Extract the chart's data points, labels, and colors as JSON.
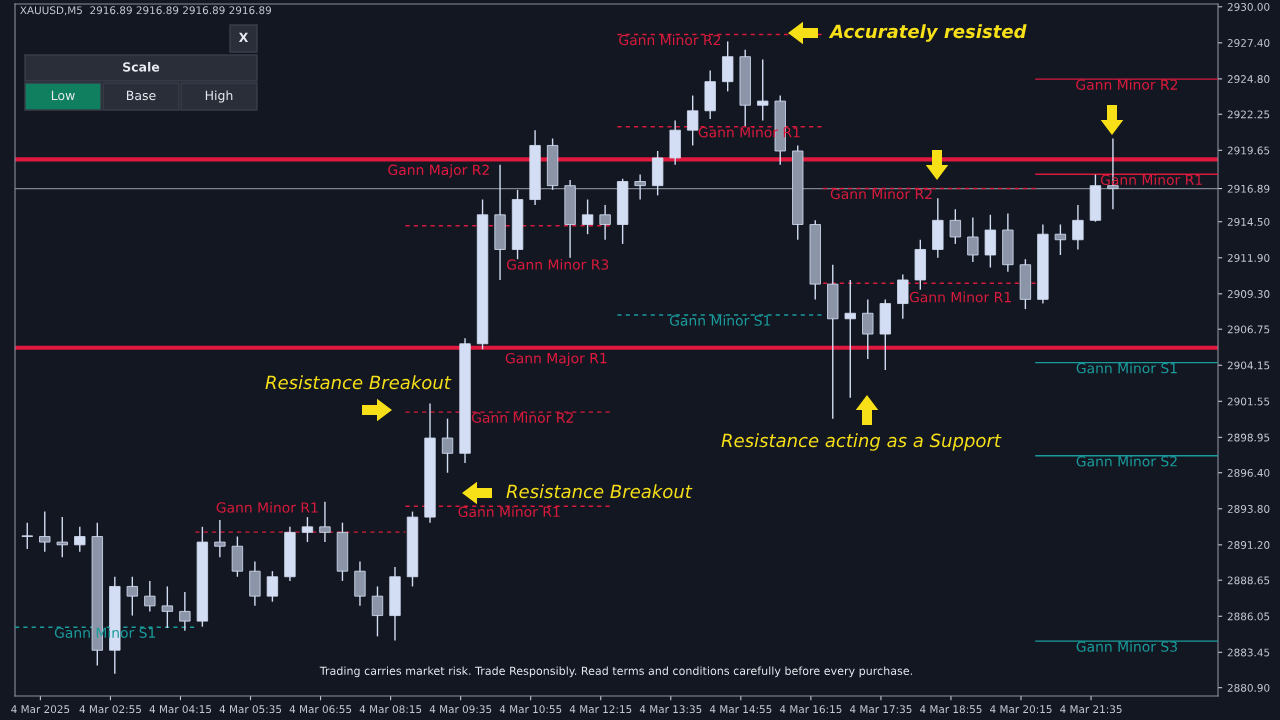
{
  "chart_data": {
    "type": "candlestick",
    "title": "XAUUSD,M5  2916.89 2916.89 2916.89 2916.89",
    "color": "#d3ddf3",
    "x": [
      "2025-03-04T01:20",
      "2025-03-04T01:40",
      "2025-03-04T02:00",
      "2025-03-04T02:20",
      "2025-03-04T02:40",
      "2025-03-04T03:00",
      "2025-03-04T03:20",
      "2025-03-04T03:40",
      "2025-03-04T04:00",
      "2025-03-04T04:20",
      "2025-03-04T04:40",
      "2025-03-04T05:00",
      "2025-03-04T05:20",
      "2025-03-04T05:40",
      "2025-03-04T06:00",
      "2025-03-04T06:20",
      "2025-03-04T06:40",
      "2025-03-04T07:00",
      "2025-03-04T07:20",
      "2025-03-04T07:40",
      "2025-03-04T08:00",
      "2025-03-04T08:20",
      "2025-03-04T08:40",
      "2025-03-04T09:00",
      "2025-03-04T09:20",
      "2025-03-04T09:40",
      "2025-03-04T10:00",
      "2025-03-04T10:20",
      "2025-03-04T10:40",
      "2025-03-04T11:00",
      "2025-03-04T11:20",
      "2025-03-04T11:40",
      "2025-03-04T12:00",
      "2025-03-04T12:20",
      "2025-03-04T12:40",
      "2025-03-04T13:00",
      "2025-03-04T13:20",
      "2025-03-04T13:40",
      "2025-03-04T14:00",
      "2025-03-04T14:20",
      "2025-03-04T14:40",
      "2025-03-04T15:00",
      "2025-03-04T15:20",
      "2025-03-04T15:40",
      "2025-03-04T16:00",
      "2025-03-04T16:20",
      "2025-03-04T16:40",
      "2025-03-04T17:00",
      "2025-03-04T17:20",
      "2025-03-04T17:40",
      "2025-03-04T18:00",
      "2025-03-04T18:20",
      "2025-03-04T18:40",
      "2025-03-04T19:00",
      "2025-03-04T19:20",
      "2025-03-04T19:40",
      "2025-03-04T20:00",
      "2025-03-04T20:20",
      "2025-03-04T20:40",
      "2025-03-04T21:00",
      "2025-03-04T21:20",
      "2025-03-04T21:40",
      "2025-03-04T22:00"
    ],
    "ohlc": [
      [
        2891.8,
        2892.8,
        2890.9,
        2891.8
      ],
      [
        2891.8,
        2893.6,
        2890.7,
        2891.4
      ],
      [
        2891.4,
        2893.2,
        2890.3,
        2891.2
      ],
      [
        2891.2,
        2892.5,
        2890.7,
        2891.8
      ],
      [
        2891.8,
        2892.8,
        2882.5,
        2883.6
      ],
      [
        2883.6,
        2888.9,
        2881.9,
        2888.2
      ],
      [
        2888.2,
        2888.9,
        2886.1,
        2887.5
      ],
      [
        2887.5,
        2888.6,
        2886.4,
        2886.8
      ],
      [
        2886.8,
        2888.2,
        2885.2,
        2886.4
      ],
      [
        2886.4,
        2887.8,
        2885.0,
        2885.7
      ],
      [
        2885.7,
        2892.5,
        2885.3,
        2891.4
      ],
      [
        2891.4,
        2893.0,
        2890.3,
        2891.1
      ],
      [
        2891.1,
        2891.8,
        2888.9,
        2889.3
      ],
      [
        2889.3,
        2890.0,
        2886.8,
        2887.5
      ],
      [
        2887.5,
        2889.3,
        2887.1,
        2888.9
      ],
      [
        2888.9,
        2892.5,
        2888.6,
        2892.1
      ],
      [
        2892.1,
        2893.2,
        2891.4,
        2892.5
      ],
      [
        2892.5,
        2894.3,
        2891.4,
        2892.1
      ],
      [
        2892.1,
        2892.8,
        2888.6,
        2889.3
      ],
      [
        2889.3,
        2890.0,
        2886.8,
        2887.5
      ],
      [
        2887.5,
        2888.2,
        2884.6,
        2886.1
      ],
      [
        2886.1,
        2889.6,
        2884.3,
        2888.9
      ],
      [
        2888.9,
        2893.6,
        2888.2,
        2893.2
      ],
      [
        2893.2,
        2901.4,
        2892.8,
        2898.9
      ],
      [
        2898.9,
        2900.3,
        2896.4,
        2897.8
      ],
      [
        2897.8,
        2906.1,
        2897.1,
        2905.7
      ],
      [
        2905.7,
        2916.1,
        2905.3,
        2915.0
      ],
      [
        2915.0,
        2918.6,
        2910.3,
        2912.5
      ],
      [
        2912.5,
        2916.8,
        2911.8,
        2916.1
      ],
      [
        2916.1,
        2921.1,
        2915.7,
        2920.0
      ],
      [
        2920.0,
        2920.5,
        2916.8,
        2917.1
      ],
      [
        2917.1,
        2917.5,
        2911.9,
        2914.3
      ],
      [
        2914.3,
        2916.1,
        2913.6,
        2915.0
      ],
      [
        2915.0,
        2915.7,
        2913.2,
        2914.3
      ],
      [
        2914.3,
        2917.6,
        2912.9,
        2917.4
      ],
      [
        2917.4,
        2917.9,
        2916.1,
        2917.1
      ],
      [
        2917.1,
        2919.6,
        2916.4,
        2919.1
      ],
      [
        2919.1,
        2921.8,
        2918.6,
        2921.1
      ],
      [
        2921.1,
        2923.6,
        2920.0,
        2922.5
      ],
      [
        2922.5,
        2925.4,
        2921.9,
        2924.6
      ],
      [
        2924.6,
        2927.5,
        2923.9,
        2926.4
      ],
      [
        2926.4,
        2926.9,
        2921.4,
        2922.9
      ],
      [
        2922.9,
        2926.2,
        2921.8,
        2923.2
      ],
      [
        2923.2,
        2923.6,
        2918.6,
        2919.6
      ],
      [
        2919.6,
        2920.0,
        2913.2,
        2914.3
      ],
      [
        2914.3,
        2914.6,
        2908.9,
        2910.0
      ],
      [
        2910.0,
        2911.4,
        2900.3,
        2907.5
      ],
      [
        2907.5,
        2910.3,
        2901.8,
        2907.9
      ],
      [
        2907.9,
        2908.9,
        2904.6,
        2906.4
      ],
      [
        2906.4,
        2908.9,
        2903.8,
        2908.6
      ],
      [
        2908.6,
        2910.7,
        2907.5,
        2910.3
      ],
      [
        2910.3,
        2913.2,
        2909.6,
        2912.5
      ],
      [
        2912.5,
        2916.2,
        2911.9,
        2914.6
      ],
      [
        2914.6,
        2915.4,
        2912.9,
        2913.4
      ],
      [
        2913.4,
        2914.8,
        2911.6,
        2912.1
      ],
      [
        2912.1,
        2915.0,
        2911.2,
        2913.9
      ],
      [
        2913.9,
        2915.1,
        2910.9,
        2911.4
      ],
      [
        2911.4,
        2911.8,
        2908.2,
        2908.9
      ],
      [
        2908.9,
        2914.3,
        2908.6,
        2913.6
      ],
      [
        2913.6,
        2914.3,
        2912.1,
        2913.2
      ],
      [
        2913.2,
        2915.7,
        2912.5,
        2914.6
      ],
      [
        2914.6,
        2917.9,
        2914.5,
        2917.1
      ],
      [
        2917.1,
        2920.5,
        2915.4,
        2916.89
      ]
    ],
    "series": [
      {
        "type": "line",
        "name": "Gann Minor S1",
        "x": [
          "2025-03-04T01:06",
          "2025-03-04T04:32"
        ],
        "values": [
          2885.26,
          2885.26
        ],
        "color": "#1a9c9c",
        "line_style": "dashed"
      },
      {
        "type": "line",
        "name": "Gann Minor R1",
        "x": [
          "2025-03-04T04:32",
          "2025-03-04T08:32"
        ],
        "values": [
          2892.12,
          2892.12
        ],
        "color": "#d81b3c",
        "line_style": "dashed"
      },
      {
        "type": "line",
        "name": "Gann Minor R1",
        "x": [
          "2025-03-04T08:32",
          "2025-03-04T12:29"
        ],
        "values": [
          2893.98,
          2893.98
        ],
        "color": "#d81b3c",
        "line_style": "dashed"
      },
      {
        "type": "line",
        "name": "Gann Minor R2",
        "x": [
          "2025-03-04T08:32",
          "2025-03-04T12:29"
        ],
        "values": [
          2900.77,
          2900.77
        ],
        "color": "#d81b3c",
        "line_style": "dashed"
      },
      {
        "type": "line",
        "name": "Gann Minor R3",
        "x": [
          "2025-03-04T08:32",
          "2025-03-04T12:29"
        ],
        "values": [
          2914.21,
          2914.21
        ],
        "color": "#d81b3c",
        "line_style": "dashed"
      },
      {
        "type": "line",
        "name": "Gann Minor S1",
        "x": [
          "2025-03-04T12:34",
          "2025-03-04T16:29"
        ],
        "values": [
          2907.77,
          2907.77
        ],
        "color": "#1a9c9c",
        "line_style": "dashed"
      },
      {
        "type": "line",
        "name": "Gann Minor R1",
        "x": [
          "2025-03-04T12:34",
          "2025-03-04T16:29"
        ],
        "values": [
          2921.35,
          2921.35
        ],
        "color": "#d81b3c",
        "line_style": "dashed"
      },
      {
        "type": "line",
        "name": "Gann Minor R2",
        "x": [
          "2025-03-04T12:34",
          "2025-03-04T16:29"
        ],
        "values": [
          2928.0,
          2928.0
        ],
        "color": "#d81b3c",
        "line_style": "dashed"
      },
      {
        "type": "line",
        "name": "Gann Minor R1",
        "x": [
          "2025-03-04T16:29",
          "2025-03-04T20:32"
        ],
        "values": [
          2910.06,
          2910.06
        ],
        "color": "#d81b3c",
        "line_style": "dashed"
      },
      {
        "type": "line",
        "name": "Gann Minor R2",
        "x": [
          "2025-03-04T16:29",
          "2025-03-04T20:32"
        ],
        "values": [
          2916.9,
          2916.9
        ],
        "color": "#d81b3c",
        "line_style": "dashed"
      },
      {
        "type": "line",
        "name": "Gann Minor R2",
        "x": [
          "2025-03-04T20:32",
          "2025-03-05T00:00"
        ],
        "values": [
          2924.78,
          2924.78
        ],
        "color": "#d81b3c",
        "line_style": "solid"
      },
      {
        "type": "line",
        "name": "Gann Minor R1",
        "x": [
          "2025-03-04T20:32",
          "2025-03-05T00:00"
        ],
        "values": [
          2917.92,
          2917.92
        ],
        "color": "#d81b3c",
        "line_style": "solid"
      },
      {
        "type": "line",
        "name": "Gann Minor S1",
        "x": [
          "2025-03-04T20:32",
          "2025-03-05T00:00"
        ],
        "values": [
          2904.34,
          2904.34
        ],
        "color": "#1a9c9c",
        "line_style": "solid"
      },
      {
        "type": "line",
        "name": "Gann Minor S2",
        "x": [
          "2025-03-04T20:32",
          "2025-03-05T00:00"
        ],
        "values": [
          2897.62,
          2897.62
        ],
        "color": "#1a9c9c",
        "line_style": "solid"
      },
      {
        "type": "line",
        "name": "Gann Minor S3",
        "x": [
          "2025-03-04T20:32",
          "2025-03-05T00:00"
        ],
        "values": [
          2884.26,
          2884.26
        ],
        "color": "#1a9c9c",
        "line_style": "solid"
      }
    ],
    "ref_lines": [
      {
        "axis": "y",
        "value": 2918.99,
        "label": "Gann Major R2",
        "color": "#e0193f",
        "line_style": "solid"
      },
      {
        "axis": "y",
        "value": 2905.41,
        "label": "Gann Major R1",
        "color": "#e0193f",
        "line_style": "solid"
      },
      {
        "axis": "y",
        "value": 2916.89,
        "color": "#7d838f",
        "line_style": "solid"
      }
    ],
    "annotations": [
      "Accurately resisted",
      "Resistance Breakout",
      "Resistance Breakout",
      "Resistance acting as a Support",
      "Trading carries market risk. Trade Responsibly. Read terms and conditions carefully before every purchase.",
      "X",
      "Scale",
      "Low",
      "Base",
      "High"
    ],
    "xlim": [
      "2025-03-04T01:06",
      "2025-03-05T00:00"
    ],
    "xticks": [
      {
        "value": "2025-03-04T01:35",
        "label": "4 Mar 2025"
      },
      {
        "value": "2025-03-04T02:55",
        "label": "4 Mar 02:55"
      },
      {
        "value": "2025-03-04T04:15",
        "label": "4 Mar 04:15"
      },
      {
        "value": "2025-03-04T05:35",
        "label": "4 Mar 05:35"
      },
      {
        "value": "2025-03-04T06:55",
        "label": "4 Mar 06:55"
      },
      {
        "value": "2025-03-04T08:15",
        "label": "4 Mar 08:15"
      },
      {
        "value": "2025-03-04T09:35",
        "label": "4 Mar 09:35"
      },
      {
        "value": "2025-03-04T10:55",
        "label": "4 Mar 10:55"
      },
      {
        "value": "2025-03-04T12:15",
        "label": "4 Mar 12:15"
      },
      {
        "value": "2025-03-04T13:35",
        "label": "4 Mar 13:35"
      },
      {
        "value": "2025-03-04T14:55",
        "label": "4 Mar 14:55"
      },
      {
        "value": "2025-03-04T16:15",
        "label": "4 Mar 16:15"
      },
      {
        "value": "2025-03-04T17:35",
        "label": "4 Mar 17:35"
      },
      {
        "value": "2025-03-04T18:55",
        "label": "4 Mar 18:55"
      },
      {
        "value": "2025-03-04T20:15",
        "label": "4 Mar 20:15"
      },
      {
        "value": "2025-03-04T21:35",
        "label": "4 Mar 21:35"
      }
    ],
    "ylim": [
      2880.3,
      2930.2
    ],
    "yticks": [
      {
        "value": 2930.0,
        "label": "2930.00"
      },
      {
        "value": 2927.4,
        "label": "2927.40"
      },
      {
        "value": 2924.8,
        "label": "2924.80"
      },
      {
        "value": 2922.25,
        "label": "2922.25"
      },
      {
        "value": 2919.65,
        "label": "2919.65"
      },
      {
        "value": 2916.89,
        "label": "2916.89"
      },
      {
        "value": 2914.5,
        "label": "2914.50"
      },
      {
        "value": 2911.9,
        "label": "2911.90"
      },
      {
        "value": 2909.3,
        "label": "2909.30"
      },
      {
        "value": 2906.75,
        "label": "2906.75"
      },
      {
        "value": 2904.15,
        "label": "2904.15"
      },
      {
        "value": 2901.55,
        "label": "2901.55"
      },
      {
        "value": 2898.95,
        "label": "2898.95"
      },
      {
        "value": 2896.4,
        "label": "2896.40"
      },
      {
        "value": 2893.8,
        "label": "2893.80"
      },
      {
        "value": 2891.2,
        "label": "2891.20"
      },
      {
        "value": 2888.65,
        "label": "2888.65"
      },
      {
        "value": 2886.05,
        "label": "2886.05"
      },
      {
        "value": 2883.45,
        "label": "2883.45"
      },
      {
        "value": 2880.9,
        "label": "2880.90"
      }
    ]
  }
}
